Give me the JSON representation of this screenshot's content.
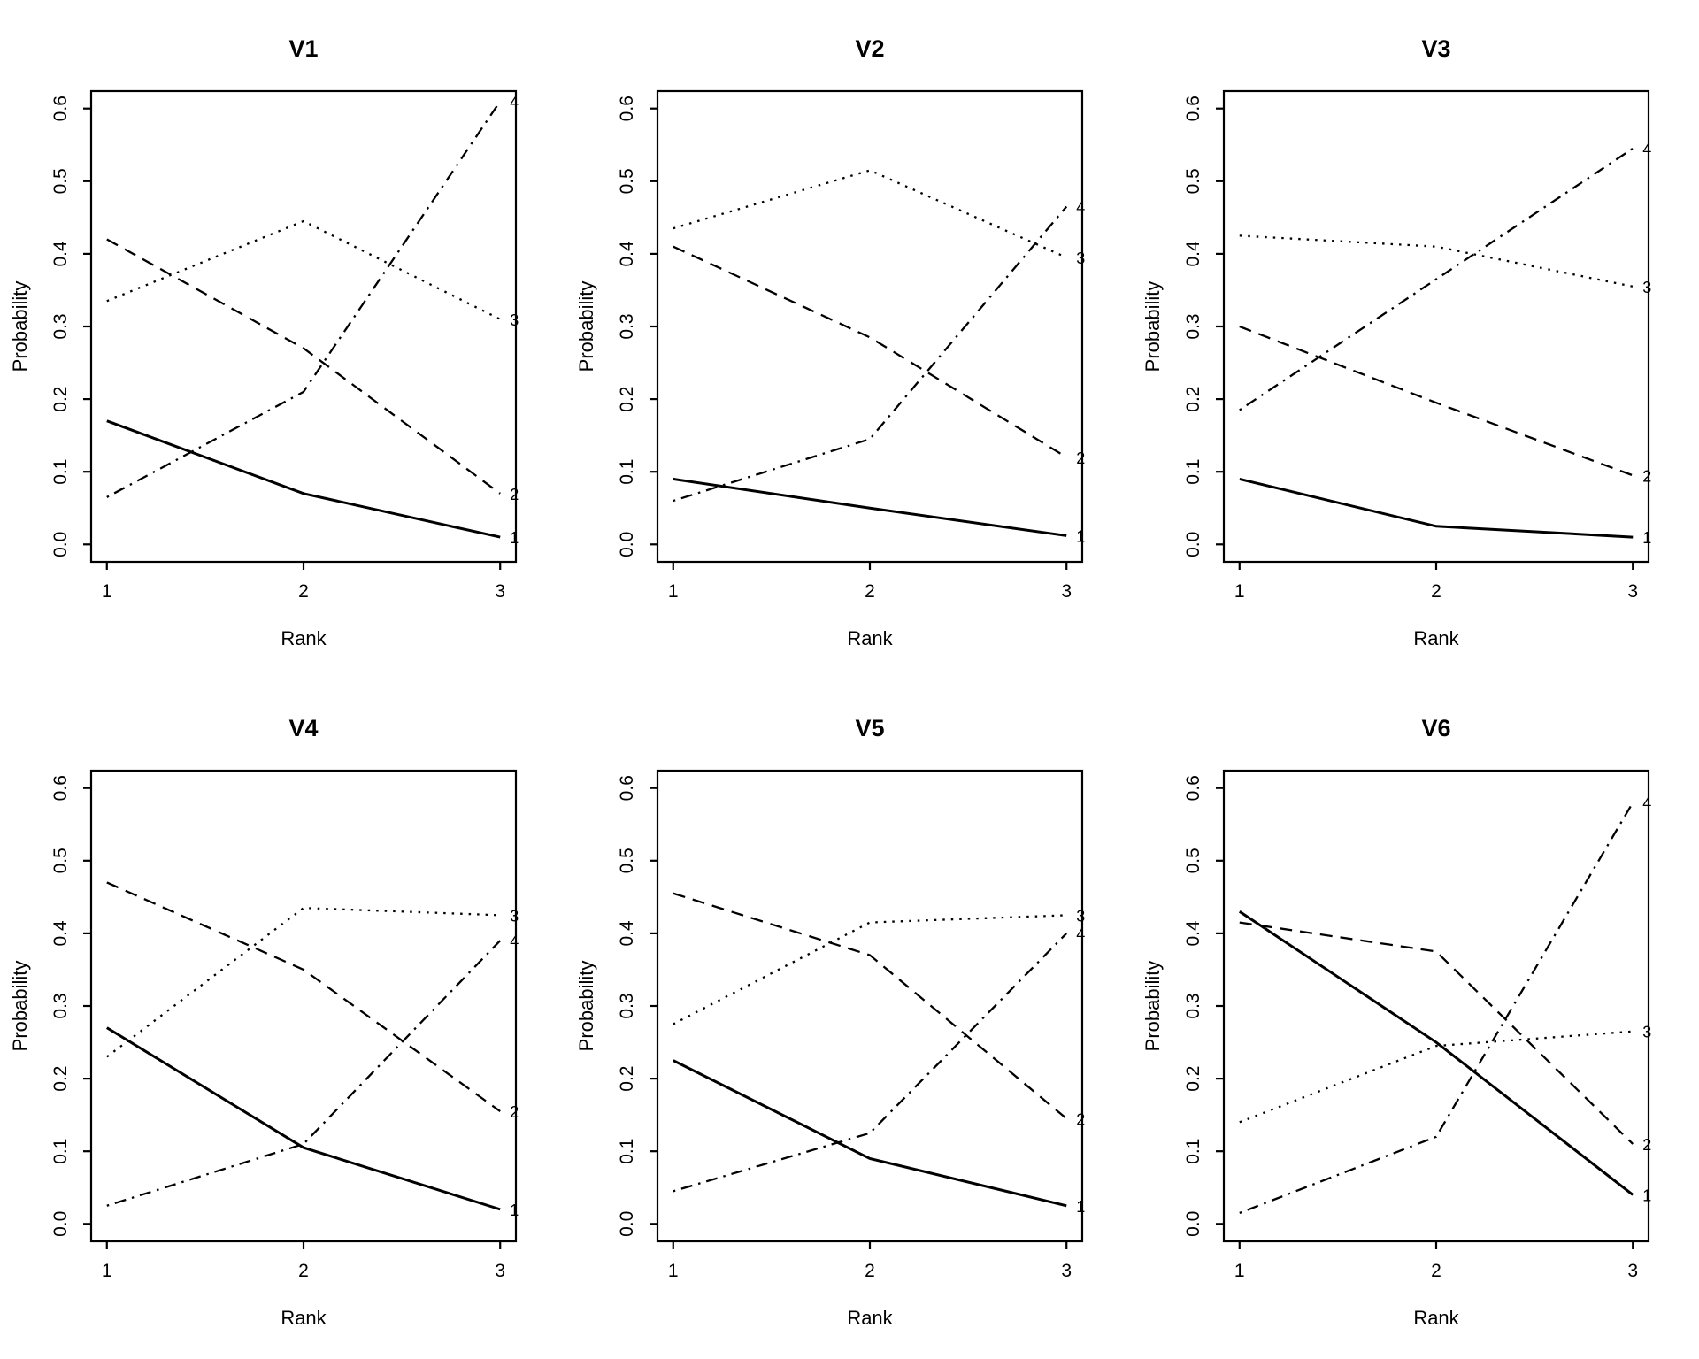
{
  "figure": {
    "description": "Grid of six rank probability line plots",
    "rows": 2,
    "cols": 3,
    "line_color": "#000000",
    "background": "#ffffff"
  },
  "chart_data": [
    {
      "type": "line",
      "title": "V1",
      "xlabel": "Rank",
      "ylabel": "Probability",
      "x": [
        1,
        2,
        3
      ],
      "xlim": [
        1,
        3
      ],
      "ylim": [
        0.0,
        0.6
      ],
      "x_ticks": [
        "1",
        "2",
        "3"
      ],
      "y_ticks": [
        "0.0",
        "0.1",
        "0.2",
        "0.3",
        "0.4",
        "0.5",
        "0.6"
      ],
      "grid": false,
      "legend_position": "line-end-labels",
      "series": [
        {
          "name": "1",
          "linestyle": "solid",
          "values": [
            0.17,
            0.07,
            0.01
          ]
        },
        {
          "name": "2",
          "linestyle": "dashed",
          "values": [
            0.42,
            0.27,
            0.07
          ]
        },
        {
          "name": "3",
          "linestyle": "dotted",
          "values": [
            0.335,
            0.445,
            0.31
          ]
        },
        {
          "name": "4",
          "linestyle": "dashdot",
          "values": [
            0.065,
            0.21,
            0.61
          ]
        }
      ]
    },
    {
      "type": "line",
      "title": "V2",
      "xlabel": "Rank",
      "ylabel": "Probability",
      "x": [
        1,
        2,
        3
      ],
      "xlim": [
        1,
        3
      ],
      "ylim": [
        0.0,
        0.6
      ],
      "x_ticks": [
        "1",
        "2",
        "3"
      ],
      "y_ticks": [
        "0.0",
        "0.1",
        "0.2",
        "0.3",
        "0.4",
        "0.5",
        "0.6"
      ],
      "grid": false,
      "legend_position": "line-end-labels",
      "series": [
        {
          "name": "1",
          "linestyle": "solid",
          "values": [
            0.09,
            0.05,
            0.012
          ]
        },
        {
          "name": "2",
          "linestyle": "dashed",
          "values": [
            0.41,
            0.285,
            0.12
          ]
        },
        {
          "name": "3",
          "linestyle": "dotted",
          "values": [
            0.435,
            0.515,
            0.395
          ]
        },
        {
          "name": "4",
          "linestyle": "dashdot",
          "values": [
            0.06,
            0.145,
            0.465
          ]
        }
      ]
    },
    {
      "type": "line",
      "title": "V3",
      "xlabel": "Rank",
      "ylabel": "Probability",
      "x": [
        1,
        2,
        3
      ],
      "xlim": [
        1,
        3
      ],
      "ylim": [
        0.0,
        0.6
      ],
      "x_ticks": [
        "1",
        "2",
        "3"
      ],
      "y_ticks": [
        "0.0",
        "0.1",
        "0.2",
        "0.3",
        "0.4",
        "0.5",
        "0.6"
      ],
      "grid": false,
      "legend_position": "line-end-labels",
      "series": [
        {
          "name": "1",
          "linestyle": "solid",
          "values": [
            0.09,
            0.025,
            0.01
          ]
        },
        {
          "name": "2",
          "linestyle": "dashed",
          "values": [
            0.3,
            0.195,
            0.095
          ]
        },
        {
          "name": "3",
          "linestyle": "dotted",
          "values": [
            0.425,
            0.41,
            0.355
          ]
        },
        {
          "name": "4",
          "linestyle": "dashdot",
          "values": [
            0.185,
            0.365,
            0.545
          ]
        }
      ]
    },
    {
      "type": "line",
      "title": "V4",
      "xlabel": "Rank",
      "ylabel": "Probability",
      "x": [
        1,
        2,
        3
      ],
      "xlim": [
        1,
        3
      ],
      "ylim": [
        0.0,
        0.6
      ],
      "x_ticks": [
        "1",
        "2",
        "3"
      ],
      "y_ticks": [
        "0.0",
        "0.1",
        "0.2",
        "0.3",
        "0.4",
        "0.5",
        "0.6"
      ],
      "grid": false,
      "legend_position": "line-end-labels",
      "series": [
        {
          "name": "1",
          "linestyle": "solid",
          "values": [
            0.27,
            0.105,
            0.02
          ]
        },
        {
          "name": "2",
          "linestyle": "dashed",
          "values": [
            0.47,
            0.35,
            0.155
          ]
        },
        {
          "name": "3",
          "linestyle": "dotted",
          "values": [
            0.23,
            0.435,
            0.425
          ]
        },
        {
          "name": "4",
          "linestyle": "dashdot",
          "values": [
            0.025,
            0.11,
            0.39
          ]
        }
      ]
    },
    {
      "type": "line",
      "title": "V5",
      "xlabel": "Rank",
      "ylabel": "Probability",
      "x": [
        1,
        2,
        3
      ],
      "xlim": [
        1,
        3
      ],
      "ylim": [
        0.0,
        0.6
      ],
      "x_ticks": [
        "1",
        "2",
        "3"
      ],
      "y_ticks": [
        "0.0",
        "0.1",
        "0.2",
        "0.3",
        "0.4",
        "0.5",
        "0.6"
      ],
      "grid": false,
      "legend_position": "line-end-labels",
      "series": [
        {
          "name": "1",
          "linestyle": "solid",
          "values": [
            0.225,
            0.09,
            0.025
          ]
        },
        {
          "name": "2",
          "linestyle": "dashed",
          "values": [
            0.455,
            0.37,
            0.145
          ]
        },
        {
          "name": "3",
          "linestyle": "dotted",
          "values": [
            0.275,
            0.415,
            0.425
          ]
        },
        {
          "name": "4",
          "linestyle": "dashdot",
          "values": [
            0.045,
            0.125,
            0.4
          ]
        }
      ]
    },
    {
      "type": "line",
      "title": "V6",
      "xlabel": "Rank",
      "ylabel": "Probability",
      "x": [
        1,
        2,
        3
      ],
      "xlim": [
        1,
        3
      ],
      "ylim": [
        0.0,
        0.6
      ],
      "x_ticks": [
        "1",
        "2",
        "3"
      ],
      "y_ticks": [
        "0.0",
        "0.1",
        "0.2",
        "0.3",
        "0.4",
        "0.5",
        "0.6"
      ],
      "grid": false,
      "legend_position": "line-end-labels",
      "series": [
        {
          "name": "1",
          "linestyle": "solid",
          "values": [
            0.43,
            0.25,
            0.04
          ]
        },
        {
          "name": "2",
          "linestyle": "dashed",
          "values": [
            0.415,
            0.375,
            0.11
          ]
        },
        {
          "name": "3",
          "linestyle": "dotted",
          "values": [
            0.14,
            0.245,
            0.265
          ]
        },
        {
          "name": "4",
          "linestyle": "dashdot",
          "values": [
            0.015,
            0.12,
            0.58
          ]
        }
      ]
    }
  ]
}
